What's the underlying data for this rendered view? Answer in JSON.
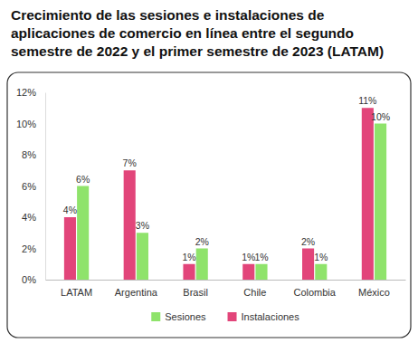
{
  "chart_data": {
    "type": "bar",
    "title": "Crecimiento de las sesiones e instalaciones de aplicaciones de comercio en línea entre el segundo semestre de 2022 y el primer semestre de 2023 (LATAM)",
    "categories": [
      "LATAM",
      "Argentina",
      "Brasil",
      "Chile",
      "Colombia",
      "México"
    ],
    "series": [
      {
        "name": "Instalaciones",
        "color": "#e2457a",
        "values": [
          4,
          7,
          1,
          1,
          2,
          11
        ],
        "value_labels": [
          "4%",
          "7%",
          "1%",
          "1%",
          "2%",
          "11%"
        ]
      },
      {
        "name": "Sesiones",
        "color": "#8fe36b",
        "values": [
          6,
          3,
          2,
          1,
          1,
          10
        ],
        "value_labels": [
          "6%",
          "3%",
          "2%",
          "1%",
          "1%",
          "10%"
        ]
      }
    ],
    "ylim": [
      0,
      12
    ],
    "yticks": [
      {
        "value": 0,
        "label": "0%"
      },
      {
        "value": 2,
        "label": "2%"
      },
      {
        "value": 4,
        "label": "4%"
      },
      {
        "value": 6,
        "label": "6%"
      },
      {
        "value": 8,
        "label": "8%"
      },
      {
        "value": 10,
        "label": "10%"
      },
      {
        "value": 12,
        "label": "12%"
      }
    ],
    "grid": false,
    "legend": "bottom",
    "data_labels": true
  }
}
